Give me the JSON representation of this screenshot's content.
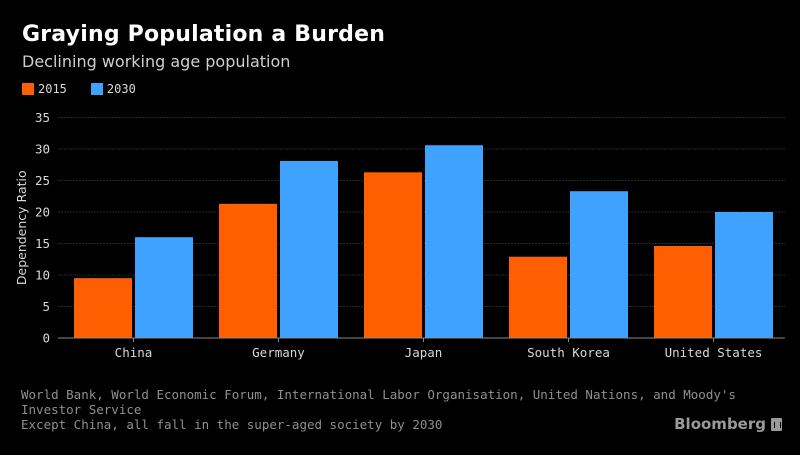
{
  "header": {
    "title": "Graying Population a Burden",
    "subtitle": "Declining working age population"
  },
  "legend": [
    {
      "label": "2015",
      "color": "#ff5f00"
    },
    {
      "label": "2030",
      "color": "#3fa2ff"
    }
  ],
  "footer": {
    "source": "World Bank, World Economic Forum, International Labor Organisation, United Nations, and Moody's Investor Service",
    "note": "Except China, all fall in the super-aged society by 2030",
    "brand": "Bloomberg",
    "brand_icon": "bloomberg-terminal-icon"
  },
  "chart_data": {
    "type": "bar",
    "title": "Graying Population a Burden",
    "subtitle": "Declining working age population",
    "xlabel": "",
    "ylabel": "Dependency Ratio",
    "ylim": [
      0,
      35
    ],
    "yticks": [
      0,
      5,
      10,
      15,
      20,
      25,
      30,
      35
    ],
    "grid": true,
    "legend_position": "top-left",
    "categories": [
      "China",
      "Germany",
      "Japan",
      "South Korea",
      "United States"
    ],
    "series": [
      {
        "name": "2015",
        "color": "#ff5f00",
        "values": [
          9.5,
          21.3,
          26.3,
          12.9,
          14.6
        ]
      },
      {
        "name": "2030",
        "color": "#3fa2ff",
        "values": [
          16.0,
          28.1,
          30.6,
          23.3,
          20.0
        ]
      }
    ]
  }
}
